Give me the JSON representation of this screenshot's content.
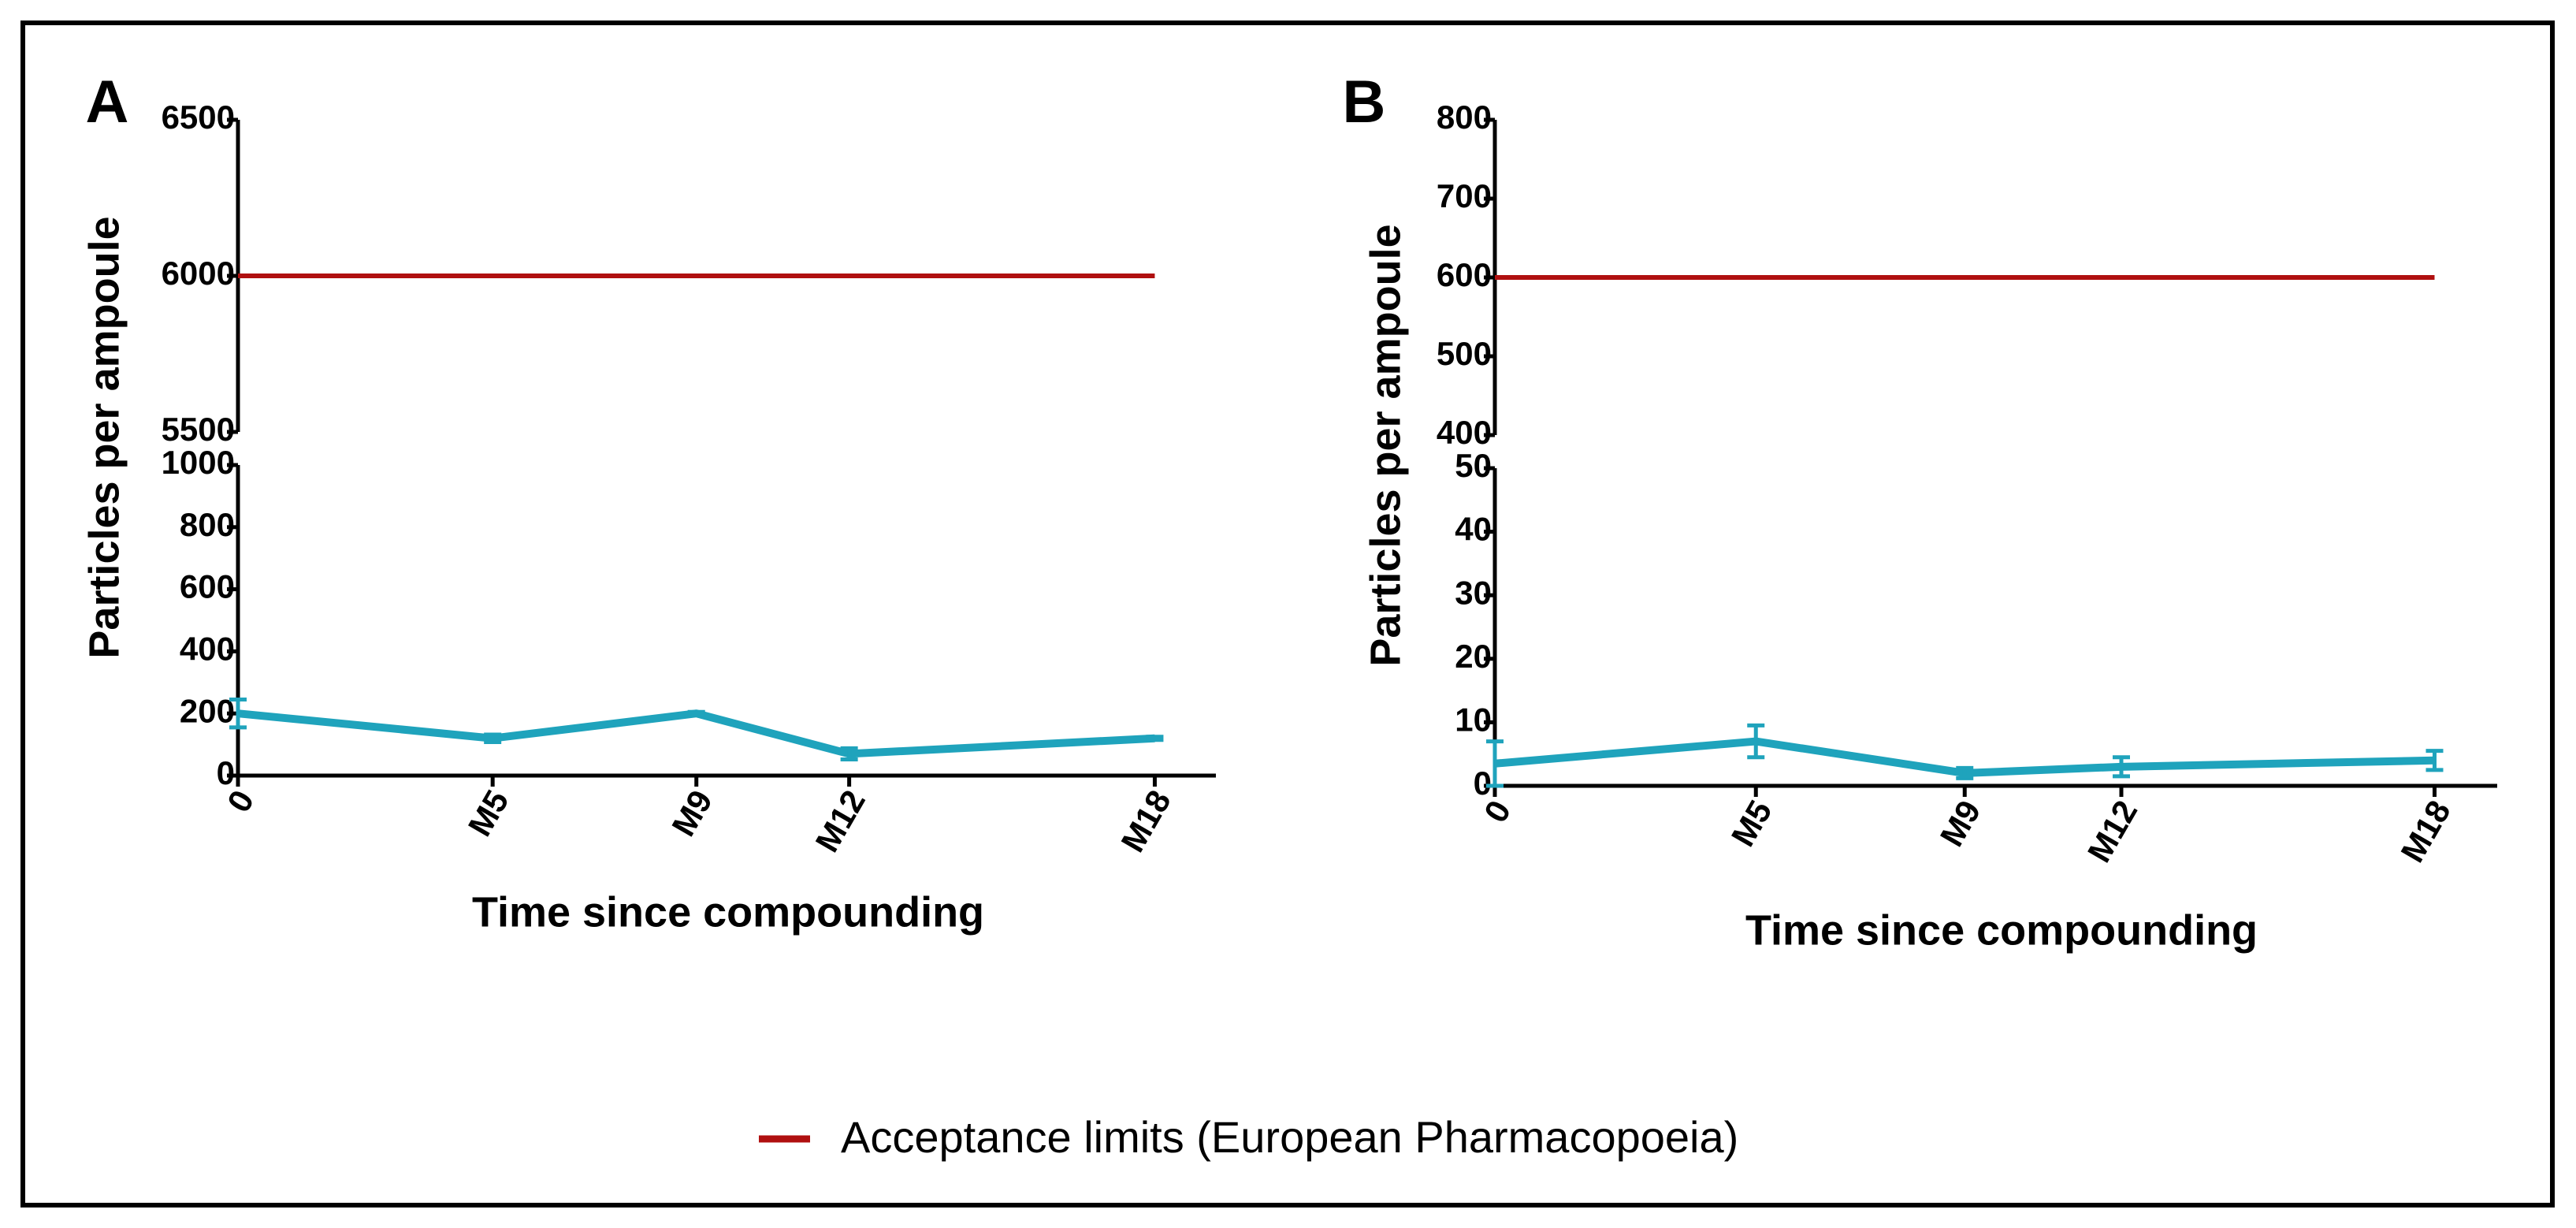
{
  "chart_data": [
    {
      "type": "line",
      "label": "A",
      "x_label": "Time since compounding",
      "y_label": "Particles per ampoule",
      "xlim": [
        0,
        19.2
      ],
      "xticks": [
        0,
        {
          "value": 5,
          "label": "M5"
        },
        {
          "value": 9,
          "label": "M9"
        },
        {
          "value": 12,
          "label": "M12"
        },
        {
          "value": 18,
          "label": "M18"
        }
      ],
      "ylim": [
        0,
        1000
      ],
      "yticks": [
        0,
        200,
        400,
        600,
        800,
        1000
      ],
      "ylim_top": [
        5500,
        6500
      ],
      "yticks_top": [
        5500,
        6000,
        6500
      ],
      "series": [
        {
          "color": "#1fa3bc",
          "x": [
            0,
            5,
            9,
            12,
            18
          ],
          "values": [
            200,
            120,
            200,
            70,
            120
          ],
          "errors": [
            45,
            12,
            5,
            18,
            5
          ]
        }
      ],
      "reference": {
        "name": "Acceptance limits (European Pharmacopoeia)",
        "color": "#b01010",
        "value": 6000
      }
    },
    {
      "type": "line",
      "label": "B",
      "x_label": "Time since compounding",
      "y_label": "Particles per ampoule",
      "xlim": [
        0,
        19.2
      ],
      "xticks": [
        0,
        {
          "value": 5,
          "label": "M5"
        },
        {
          "value": 9,
          "label": "M9"
        },
        {
          "value": 12,
          "label": "M12"
        },
        {
          "value": 18,
          "label": "M18"
        }
      ],
      "ylim": [
        0,
        50
      ],
      "yticks": [
        0,
        10,
        20,
        30,
        40,
        50
      ],
      "ylim_top": [
        400,
        800
      ],
      "yticks_top": [
        400,
        500,
        600,
        700,
        800
      ],
      "series": [
        {
          "color": "#1fa3bc",
          "x": [
            0,
            5,
            9,
            12,
            18
          ],
          "values": [
            3.5,
            7,
            2,
            3,
            4
          ],
          "errors": [
            3.5,
            2.5,
            0.8,
            1.5,
            1.5
          ]
        }
      ],
      "reference": {
        "color": "#b01010",
        "value": 600
      }
    }
  ]
}
